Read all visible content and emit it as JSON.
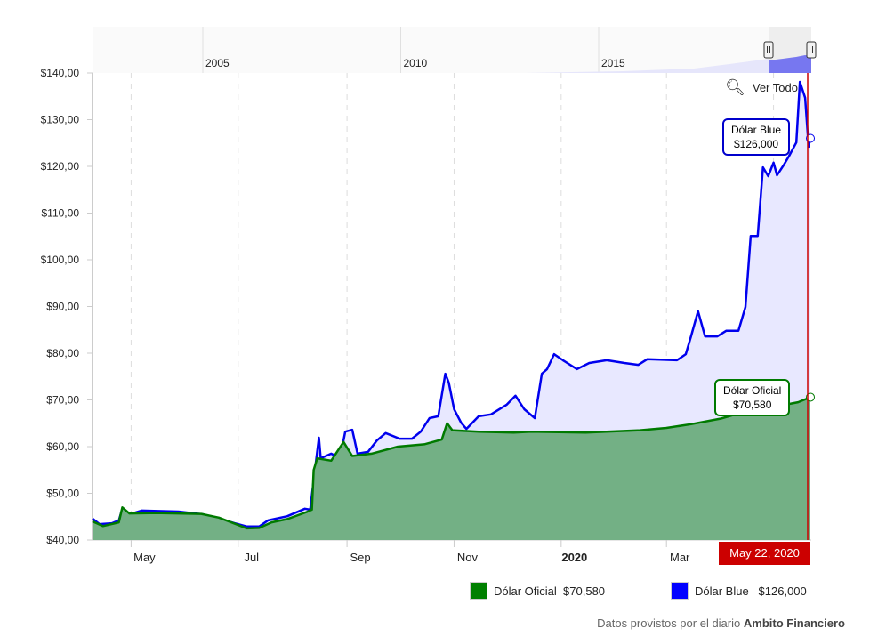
{
  "chart_data": {
    "type": "area",
    "ylim": [
      40,
      140
    ],
    "y_ticks": [
      "$40,00",
      "$50,00",
      "$60,00",
      "$70,00",
      "$80,00",
      "$90,00",
      "$100,00",
      "$110,00",
      "$120,00",
      "$130,00",
      "$140,00"
    ],
    "x_range": [
      "2019-04-09",
      "2020-05-22"
    ],
    "x_ticks": [
      {
        "label": "May",
        "date": "2019-05-01"
      },
      {
        "label": "Jul",
        "date": "2019-07-01"
      },
      {
        "label": "Sep",
        "date": "2019-09-01"
      },
      {
        "label": "Nov",
        "date": "2019-11-01"
      },
      {
        "label": "2020",
        "date": "2020-01-01",
        "bold": true
      },
      {
        "label": "Mar",
        "date": "2020-03-01"
      }
    ],
    "grid": "vertical dashed",
    "navigator": {
      "years": [
        "2005",
        "2010",
        "2015"
      ]
    },
    "series": [
      {
        "name": "Dólar Blue",
        "color": "#0000ee",
        "fill": "#e8e8ff",
        "points": [
          [
            "2019-04-09",
            44.6
          ],
          [
            "2019-04-13",
            43.4
          ],
          [
            "2019-04-20",
            43.6
          ],
          [
            "2019-04-24",
            44.2
          ],
          [
            "2019-04-26",
            46.7
          ],
          [
            "2019-04-30",
            45.5
          ],
          [
            "2019-05-07",
            46.3
          ],
          [
            "2019-05-28",
            46.1
          ],
          [
            "2019-06-11",
            45.5
          ],
          [
            "2019-06-20",
            44.6
          ],
          [
            "2019-06-29",
            43.6
          ],
          [
            "2019-07-06",
            42.9
          ],
          [
            "2019-07-13",
            42.9
          ],
          [
            "2019-07-18",
            44.2
          ],
          [
            "2019-07-29",
            45.1
          ],
          [
            "2019-08-08",
            46.7
          ],
          [
            "2019-08-11",
            46.5
          ],
          [
            "2019-08-13",
            52.8
          ],
          [
            "2019-08-16",
            61.9
          ],
          [
            "2019-08-17",
            57.5
          ],
          [
            "2019-08-23",
            58.5
          ],
          [
            "2019-08-28",
            57.5
          ],
          [
            "2019-08-31",
            63.2
          ],
          [
            "2019-09-04",
            63.6
          ],
          [
            "2019-09-07",
            58.5
          ],
          [
            "2019-09-13",
            58.9
          ],
          [
            "2019-09-18",
            61.3
          ],
          [
            "2019-09-23",
            62.9
          ],
          [
            "2019-10-01",
            61.7
          ],
          [
            "2019-10-08",
            61.7
          ],
          [
            "2019-10-13",
            63.2
          ],
          [
            "2019-10-18",
            66.1
          ],
          [
            "2019-10-23",
            66.5
          ],
          [
            "2019-10-27",
            75.6
          ],
          [
            "2019-10-29",
            73.7
          ],
          [
            "2019-11-01",
            68.0
          ],
          [
            "2019-11-05",
            65.1
          ],
          [
            "2019-11-08",
            63.8
          ],
          [
            "2019-11-15",
            66.5
          ],
          [
            "2019-11-22",
            66.9
          ],
          [
            "2019-12-01",
            69.0
          ],
          [
            "2019-12-06",
            70.9
          ],
          [
            "2019-12-11",
            68.0
          ],
          [
            "2019-12-17",
            66.1
          ],
          [
            "2019-12-21",
            75.6
          ],
          [
            "2019-12-24",
            76.6
          ],
          [
            "2019-12-28",
            79.8
          ],
          [
            "2020-01-02",
            78.5
          ],
          [
            "2020-01-10",
            76.6
          ],
          [
            "2020-01-17",
            77.9
          ],
          [
            "2020-01-27",
            78.5
          ],
          [
            "2020-02-06",
            77.9
          ],
          [
            "2020-02-14",
            77.5
          ],
          [
            "2020-02-19",
            78.7
          ],
          [
            "2020-03-07",
            78.5
          ],
          [
            "2020-03-12",
            79.8
          ],
          [
            "2020-03-15",
            83.6
          ],
          [
            "2020-03-19",
            89.0
          ],
          [
            "2020-03-23",
            83.6
          ],
          [
            "2020-03-30",
            83.6
          ],
          [
            "2020-04-04",
            84.8
          ],
          [
            "2020-04-11",
            84.8
          ],
          [
            "2020-04-15",
            89.9
          ],
          [
            "2020-04-18",
            105.1
          ],
          [
            "2020-04-22",
            105.1
          ],
          [
            "2020-04-25",
            119.8
          ],
          [
            "2020-04-28",
            117.9
          ],
          [
            "2020-05-01",
            120.8
          ],
          [
            "2020-05-03",
            118.1
          ],
          [
            "2020-05-07",
            120.4
          ],
          [
            "2020-05-10",
            122.3
          ],
          [
            "2020-05-14",
            125.1
          ],
          [
            "2020-05-16",
            138.1
          ],
          [
            "2020-05-19",
            134.7
          ],
          [
            "2020-05-21",
            124.2
          ],
          [
            "2020-05-22",
            126.0
          ]
        ]
      },
      {
        "name": "Dólar Oficial",
        "color": "#007a00",
        "fill": "#73b085",
        "points": [
          [
            "2019-04-09",
            44.0
          ],
          [
            "2019-04-15",
            43.0
          ],
          [
            "2019-04-24",
            43.8
          ],
          [
            "2019-04-26",
            47.0
          ],
          [
            "2019-04-30",
            45.7
          ],
          [
            "2019-05-15",
            45.8
          ],
          [
            "2019-06-10",
            45.6
          ],
          [
            "2019-06-20",
            44.8
          ],
          [
            "2019-06-29",
            43.5
          ],
          [
            "2019-07-06",
            42.5
          ],
          [
            "2019-07-13",
            42.6
          ],
          [
            "2019-07-20",
            43.8
          ],
          [
            "2019-07-29",
            44.5
          ],
          [
            "2019-08-09",
            46.0
          ],
          [
            "2019-08-12",
            46.5
          ],
          [
            "2019-08-13",
            55.0
          ],
          [
            "2019-08-15",
            57.5
          ],
          [
            "2019-08-23",
            57.0
          ],
          [
            "2019-08-30",
            61.0
          ],
          [
            "2019-09-04",
            58.0
          ],
          [
            "2019-09-15",
            58.5
          ],
          [
            "2019-09-30",
            60.0
          ],
          [
            "2019-10-15",
            60.5
          ],
          [
            "2019-10-25",
            61.5
          ],
          [
            "2019-10-28",
            65.0
          ],
          [
            "2019-10-31",
            63.5
          ],
          [
            "2019-11-15",
            63.2
          ],
          [
            "2019-12-05",
            63.0
          ],
          [
            "2019-12-15",
            63.2
          ],
          [
            "2020-01-15",
            63.0
          ],
          [
            "2020-02-15",
            63.5
          ],
          [
            "2020-03-01",
            64.0
          ],
          [
            "2020-03-15",
            64.8
          ],
          [
            "2020-04-01",
            66.0
          ],
          [
            "2020-04-15",
            67.5
          ],
          [
            "2020-05-01",
            68.5
          ],
          [
            "2020-05-15",
            69.5
          ],
          [
            "2020-05-22",
            70.58
          ]
        ]
      }
    ]
  },
  "tooltips": {
    "blue": {
      "name": "Dólar Blue",
      "value": "$126,000"
    },
    "oficial": {
      "name": "Dólar Oficial",
      "value": "$70,580"
    }
  },
  "crosshair_date": "May 22, 2020",
  "zoom_reset_label": "Ver Todo",
  "legend": [
    {
      "name": "Dólar Oficial",
      "value": "$70,580",
      "color": "#008000"
    },
    {
      "name": "Dólar Blue",
      "value": "$126,000",
      "color": "#0000ff"
    }
  ],
  "credit": {
    "prefix": "Datos provistos por el diario",
    "source": "Ambito Financiero"
  }
}
